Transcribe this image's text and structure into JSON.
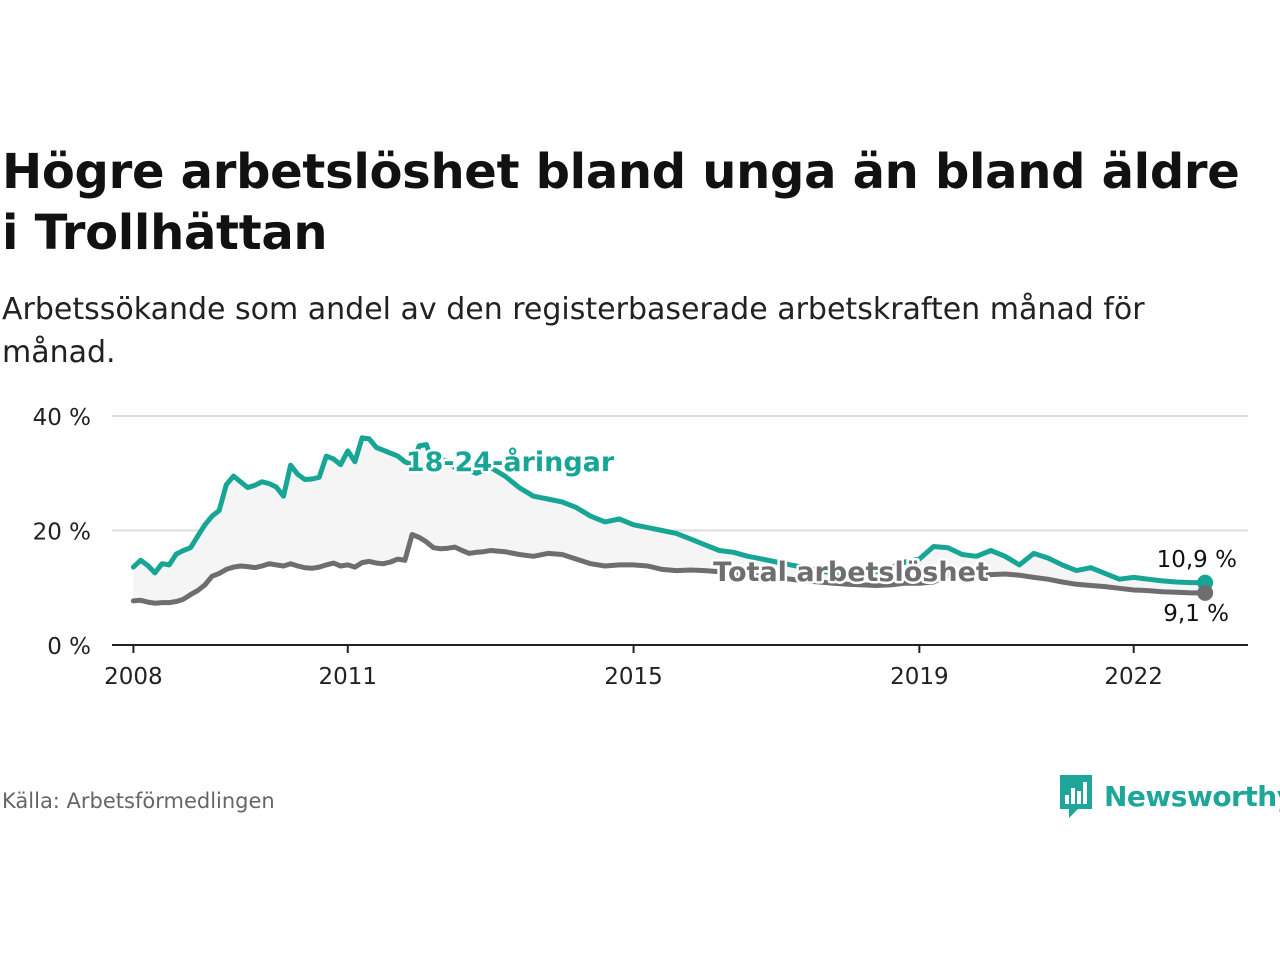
{
  "header": {
    "title": "Högre arbetslöshet bland unga än bland äldre i Trollhättan",
    "subtitle": "Arbetssökande som andel av den registerbaserade arbetskraften månad för månad."
  },
  "footer": {
    "source": "Källa: Arbetsförmedlingen",
    "brand": "Newsworthy",
    "brand_color": "#1ea69a"
  },
  "colors": {
    "youth": "#17a596",
    "total": "#6e6e70",
    "band": "#f5f5f5",
    "grid": "#dddddd",
    "axis": "#222222"
  },
  "chart_data": {
    "type": "line",
    "title": "Högre arbetslöshet bland unga än bland äldre i Trollhättan",
    "xlabel": "",
    "ylabel": "",
    "ylim": [
      0,
      40
    ],
    "xlim": [
      2007.7,
      2023.6
    ],
    "y_ticks": [
      0,
      20,
      40
    ],
    "y_tick_labels": [
      "0 %",
      "20 %",
      "40 %"
    ],
    "x_ticks": [
      2008,
      2011,
      2015,
      2019,
      2022
    ],
    "x_tick_labels": [
      "2008",
      "2011",
      "2015",
      "2019",
      "2022"
    ],
    "grid": true,
    "series": [
      {
        "name": "18-24-åringar",
        "label": "18-24-åringar",
        "end_label": "10,9 %",
        "x": [
          2008.0,
          2008.1,
          2008.2,
          2008.3,
          2008.4,
          2008.5,
          2008.6,
          2008.7,
          2008.8,
          2008.9,
          2009.0,
          2009.1,
          2009.2,
          2009.3,
          2009.4,
          2009.5,
          2009.6,
          2009.7,
          2009.8,
          2009.9,
          2010.0,
          2010.1,
          2010.2,
          2010.3,
          2010.4,
          2010.5,
          2010.6,
          2010.7,
          2010.8,
          2010.9,
          2011.0,
          2011.1,
          2011.2,
          2011.3,
          2011.4,
          2011.5,
          2011.6,
          2011.7,
          2011.8,
          2011.9,
          2012.0,
          2012.1,
          2012.2,
          2012.3,
          2012.4,
          2012.5,
          2012.6,
          2012.7,
          2012.8,
          2012.9,
          2013.0,
          2013.2,
          2013.4,
          2013.6,
          2013.8,
          2014.0,
          2014.2,
          2014.4,
          2014.6,
          2014.8,
          2015.0,
          2015.2,
          2015.4,
          2015.6,
          2015.8,
          2016.0,
          2016.2,
          2016.4,
          2016.6,
          2016.8,
          2017.0,
          2017.2,
          2017.4,
          2017.6,
          2017.8,
          2018.0,
          2018.2,
          2018.4,
          2018.6,
          2018.8,
          2019.0,
          2019.2,
          2019.4,
          2019.6,
          2019.8,
          2020.0,
          2020.2,
          2020.4,
          2020.6,
          2020.8,
          2021.0,
          2021.2,
          2021.4,
          2021.6,
          2021.8,
          2022.0,
          2022.2,
          2022.4,
          2022.6,
          2022.8,
          2023.0
        ],
        "values": [
          13.6,
          14.8,
          13.9,
          12.6,
          14.2,
          14.0,
          15.9,
          16.5,
          17.0,
          19.0,
          21.0,
          22.5,
          23.5,
          28.0,
          29.5,
          28.5,
          27.5,
          27.9,
          28.5,
          28.2,
          27.6,
          26.0,
          31.4,
          29.8,
          28.9,
          29.0,
          29.3,
          33.0,
          32.5,
          31.5,
          33.9,
          32.0,
          36.2,
          36.0,
          34.5,
          34.0,
          33.5,
          33.0,
          32.0,
          31.5,
          34.8,
          35.0,
          31.5,
          32.5,
          32.0,
          31.0,
          31.5,
          30.5,
          30.0,
          30.5,
          31.0,
          29.5,
          27.5,
          26.0,
          25.5,
          25.0,
          24.0,
          22.5,
          21.5,
          22.0,
          21.0,
          20.5,
          20.0,
          19.5,
          18.5,
          17.5,
          16.5,
          16.2,
          15.5,
          15.0,
          14.5,
          14.0,
          13.5,
          13.0,
          12.5,
          12.3,
          12.5,
          12.8,
          13.5,
          14.5,
          15.0,
          17.2,
          17.0,
          15.8,
          15.5,
          16.5,
          15.5,
          14.0,
          16.0,
          15.2,
          14.0,
          13.0,
          13.5,
          12.5,
          11.5,
          11.8,
          11.5,
          11.2,
          11.0,
          10.9,
          10.9
        ]
      },
      {
        "name": "Total arbetslöshet",
        "label": "Total arbetslöshet",
        "end_label": "9,1 %",
        "x": [
          2008.0,
          2008.1,
          2008.2,
          2008.3,
          2008.4,
          2008.5,
          2008.6,
          2008.7,
          2008.8,
          2008.9,
          2009.0,
          2009.1,
          2009.2,
          2009.3,
          2009.4,
          2009.5,
          2009.6,
          2009.7,
          2009.8,
          2009.9,
          2010.0,
          2010.1,
          2010.2,
          2010.3,
          2010.4,
          2010.5,
          2010.6,
          2010.7,
          2010.8,
          2010.9,
          2011.0,
          2011.1,
          2011.2,
          2011.3,
          2011.4,
          2011.5,
          2011.6,
          2011.7,
          2011.8,
          2011.9,
          2012.0,
          2012.1,
          2012.2,
          2012.3,
          2012.4,
          2012.5,
          2012.6,
          2012.7,
          2012.8,
          2012.9,
          2013.0,
          2013.2,
          2013.4,
          2013.6,
          2013.8,
          2014.0,
          2014.2,
          2014.4,
          2014.6,
          2014.8,
          2015.0,
          2015.2,
          2015.4,
          2015.6,
          2015.8,
          2016.0,
          2016.2,
          2016.4,
          2016.6,
          2016.8,
          2017.0,
          2017.2,
          2017.4,
          2017.6,
          2017.8,
          2018.0,
          2018.2,
          2018.4,
          2018.6,
          2018.8,
          2019.0,
          2019.2,
          2019.4,
          2019.6,
          2019.8,
          2020.0,
          2020.2,
          2020.4,
          2020.6,
          2020.8,
          2021.0,
          2021.2,
          2021.4,
          2021.6,
          2021.8,
          2022.0,
          2022.2,
          2022.4,
          2022.6,
          2022.8,
          2023.0
        ],
        "values": [
          7.7,
          7.8,
          7.5,
          7.3,
          7.4,
          7.4,
          7.6,
          8.0,
          8.8,
          9.5,
          10.5,
          12.0,
          12.5,
          13.2,
          13.6,
          13.8,
          13.7,
          13.5,
          13.8,
          14.2,
          14.0,
          13.8,
          14.2,
          13.8,
          13.5,
          13.4,
          13.6,
          14.0,
          14.3,
          13.8,
          14.0,
          13.6,
          14.4,
          14.6,
          14.3,
          14.2,
          14.5,
          15.0,
          14.8,
          19.3,
          18.8,
          18.0,
          17.0,
          16.8,
          16.9,
          17.1,
          16.5,
          16.0,
          16.2,
          16.3,
          16.5,
          16.3,
          15.8,
          15.5,
          16.0,
          15.8,
          15.0,
          14.2,
          13.8,
          14.0,
          14.0,
          13.8,
          13.2,
          13.0,
          13.1,
          13.0,
          12.8,
          12.5,
          12.2,
          12.0,
          11.8,
          11.5,
          11.2,
          11.0,
          10.8,
          10.6,
          10.5,
          10.4,
          10.5,
          10.8,
          10.8,
          11.0,
          12.2,
          12.8,
          12.5,
          12.3,
          12.4,
          12.2,
          11.8,
          11.5,
          11.0,
          10.6,
          10.4,
          10.2,
          9.9,
          9.6,
          9.5,
          9.3,
          9.2,
          9.1,
          9.1
        ]
      }
    ]
  }
}
